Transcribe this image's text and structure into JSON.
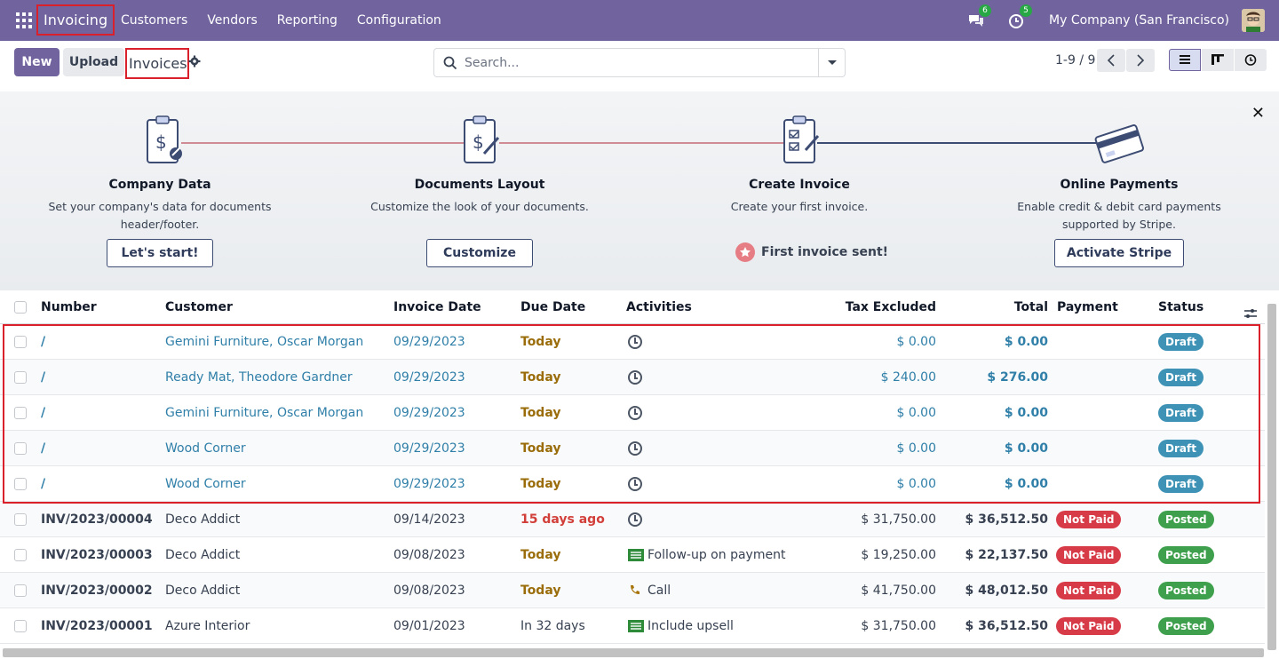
{
  "navbar": {
    "app_name": "Invoicing",
    "menu": [
      "Customers",
      "Vendors",
      "Reporting",
      "Configuration"
    ],
    "chat_count": "6",
    "activity_count": "5",
    "company": "My Company (San Francisco)"
  },
  "control": {
    "new_label": "New",
    "upload_label": "Upload",
    "breadcrumb": "Invoices",
    "search_placeholder": "Search...",
    "pager": "1-9 / 9"
  },
  "onboarding": {
    "steps": [
      {
        "title": "Company Data",
        "desc1": "Set your company's data for documents",
        "desc2": "header/footer.",
        "button": "Let's start!"
      },
      {
        "title": "Documents Layout",
        "desc1": "Customize the look of your documents.",
        "desc2": "",
        "button": "Customize"
      },
      {
        "title": "Create Invoice",
        "desc1": "Create your first invoice.",
        "desc2": "",
        "done": "First invoice sent!"
      },
      {
        "title": "Online Payments",
        "desc1": "Enable credit & debit card payments",
        "desc2": "supported by Stripe.",
        "button": "Activate Stripe"
      }
    ]
  },
  "table": {
    "headers": {
      "number": "Number",
      "customer": "Customer",
      "invoice_date": "Invoice Date",
      "due_date": "Due Date",
      "activities": "Activities",
      "tax_excluded": "Tax Excluded",
      "total": "Total",
      "payment": "Payment",
      "status": "Status"
    },
    "rows": [
      {
        "number": "/",
        "customer": "Gemini Furniture, Oscar Morgan",
        "invoice_date": "09/29/2023",
        "due_date": "Today",
        "activity": "",
        "tax_excluded": "$ 0.00",
        "total": "$ 0.00",
        "payment": "",
        "status": "Draft"
      },
      {
        "number": "/",
        "customer": "Ready Mat, Theodore Gardner",
        "invoice_date": "09/29/2023",
        "due_date": "Today",
        "activity": "",
        "tax_excluded": "$ 240.00",
        "total": "$ 276.00",
        "payment": "",
        "status": "Draft"
      },
      {
        "number": "/",
        "customer": "Gemini Furniture, Oscar Morgan",
        "invoice_date": "09/29/2023",
        "due_date": "Today",
        "activity": "",
        "tax_excluded": "$ 0.00",
        "total": "$ 0.00",
        "payment": "",
        "status": "Draft"
      },
      {
        "number": "/",
        "customer": "Wood Corner",
        "invoice_date": "09/29/2023",
        "due_date": "Today",
        "activity": "",
        "tax_excluded": "$ 0.00",
        "total": "$ 0.00",
        "payment": "",
        "status": "Draft"
      },
      {
        "number": "/",
        "customer": "Wood Corner",
        "invoice_date": "09/29/2023",
        "due_date": "Today",
        "activity": "",
        "tax_excluded": "$ 0.00",
        "total": "$ 0.00",
        "payment": "",
        "status": "Draft"
      },
      {
        "number": "INV/2023/00004",
        "customer": "Deco Addict",
        "invoice_date": "09/14/2023",
        "due_date": "15 days ago",
        "activity": "",
        "tax_excluded": "$ 31,750.00",
        "total": "$ 36,512.50",
        "payment": "Not Paid",
        "status": "Posted"
      },
      {
        "number": "INV/2023/00003",
        "customer": "Deco Addict",
        "invoice_date": "09/08/2023",
        "due_date": "Today",
        "activity": "Follow-up on payment",
        "tax_excluded": "$ 19,250.00",
        "total": "$ 22,137.50",
        "payment": "Not Paid",
        "status": "Posted"
      },
      {
        "number": "INV/2023/00002",
        "customer": "Deco Addict",
        "invoice_date": "09/08/2023",
        "due_date": "Today",
        "activity": "Call",
        "tax_excluded": "$ 41,750.00",
        "total": "$ 48,012.50",
        "payment": "Not Paid",
        "status": "Posted"
      },
      {
        "number": "INV/2023/00001",
        "customer": "Azure Interior",
        "invoice_date": "09/01/2023",
        "due_date": "In 32 days",
        "activity": "Include upsell",
        "tax_excluded": "$ 31,750.00",
        "total": "$ 36,512.50",
        "payment": "Not Paid",
        "status": "Posted"
      }
    ]
  }
}
